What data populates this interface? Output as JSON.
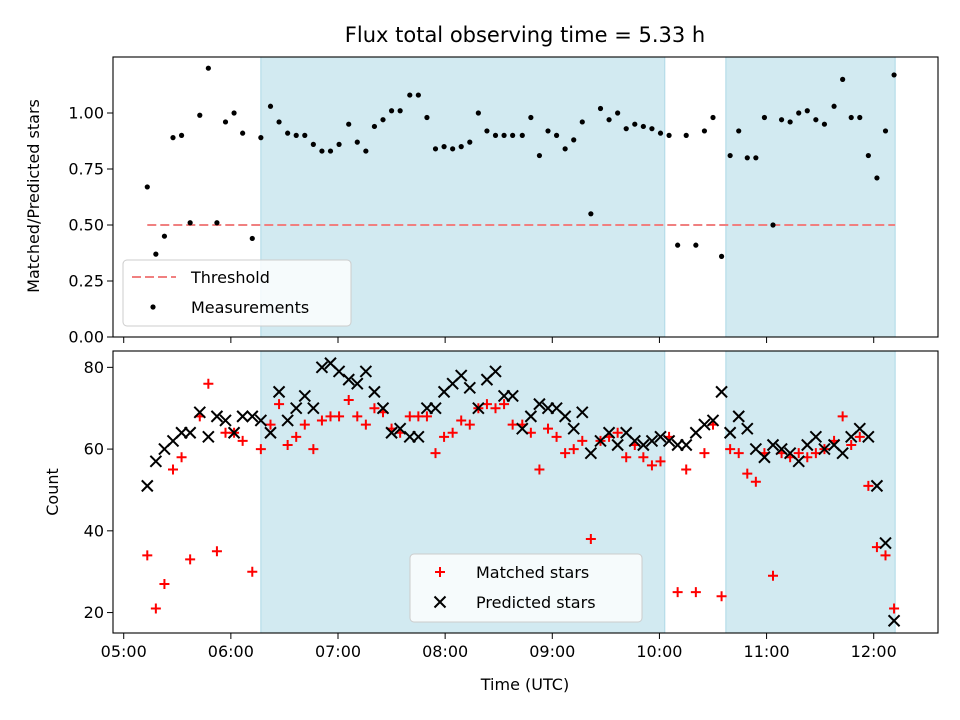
{
  "title": "Flux total observing time = 5.33 h",
  "colors": {
    "threshold": "#f08080",
    "measurement": "#000000",
    "matched": "#ff0000",
    "predicted": "#000000",
    "shade": "#add8e6"
  },
  "chart_data": [
    {
      "type": "scatter",
      "ylabel": "Matched/Predicted stars",
      "xlim": [
        4.9,
        12.6
      ],
      "ylim": [
        0,
        1.25
      ],
      "yticks": [
        0.0,
        0.25,
        0.5,
        0.75,
        1.0
      ],
      "yticklabels": [
        "0.00",
        "0.25",
        "0.50",
        "0.75",
        "1.00"
      ],
      "shaded_intervals": [
        [
          6.28,
          10.05
        ],
        [
          10.62,
          12.2
        ]
      ],
      "legend": {
        "location": "lower-left",
        "threshold_label": "Threshold",
        "measurements_label": "Measurements"
      },
      "threshold": {
        "name": "Threshold",
        "y": 0.5,
        "x": [
          5.22,
          12.2
        ]
      },
      "series": [
        {
          "name": "Measurements",
          "points": [
            [
              5.22,
              0.67
            ],
            [
              5.3,
              0.37
            ],
            [
              5.38,
              0.45
            ],
            [
              5.46,
              0.89
            ],
            [
              5.54,
              0.9
            ],
            [
              5.62,
              0.51
            ],
            [
              5.71,
              0.99
            ],
            [
              5.79,
              1.2
            ],
            [
              5.87,
              0.51
            ],
            [
              5.95,
              0.96
            ],
            [
              6.03,
              1.0
            ],
            [
              6.11,
              0.91
            ],
            [
              6.2,
              0.44
            ],
            [
              6.28,
              0.89
            ],
            [
              6.37,
              1.03
            ],
            [
              6.45,
              0.96
            ],
            [
              6.53,
              0.91
            ],
            [
              6.61,
              0.9
            ],
            [
              6.69,
              0.9
            ],
            [
              6.77,
              0.86
            ],
            [
              6.85,
              0.83
            ],
            [
              6.93,
              0.83
            ],
            [
              7.01,
              0.86
            ],
            [
              7.1,
              0.95
            ],
            [
              7.18,
              0.87
            ],
            [
              7.26,
              0.83
            ],
            [
              7.34,
              0.94
            ],
            [
              7.42,
              0.97
            ],
            [
              7.5,
              1.01
            ],
            [
              7.58,
              1.01
            ],
            [
              7.67,
              1.08
            ],
            [
              7.75,
              1.08
            ],
            [
              7.83,
              0.98
            ],
            [
              7.91,
              0.84
            ],
            [
              7.99,
              0.85
            ],
            [
              8.07,
              0.84
            ],
            [
              8.15,
              0.85
            ],
            [
              8.23,
              0.87
            ],
            [
              8.31,
              1.0
            ],
            [
              8.39,
              0.92
            ],
            [
              8.47,
              0.9
            ],
            [
              8.55,
              0.9
            ],
            [
              8.63,
              0.9
            ],
            [
              8.72,
              0.9
            ],
            [
              8.8,
              0.98
            ],
            [
              8.88,
              0.81
            ],
            [
              8.96,
              0.92
            ],
            [
              9.04,
              0.9
            ],
            [
              9.12,
              0.84
            ],
            [
              9.2,
              0.88
            ],
            [
              9.28,
              0.96
            ],
            [
              9.36,
              0.55
            ],
            [
              9.45,
              1.02
            ],
            [
              9.53,
              0.97
            ],
            [
              9.61,
              1.0
            ],
            [
              9.69,
              0.93
            ],
            [
              9.77,
              0.95
            ],
            [
              9.85,
              0.94
            ],
            [
              9.93,
              0.93
            ],
            [
              10.01,
              0.91
            ],
            [
              10.09,
              0.9
            ],
            [
              10.17,
              0.41
            ],
            [
              10.25,
              0.9
            ],
            [
              10.34,
              0.41
            ],
            [
              10.42,
              0.92
            ],
            [
              10.5,
              0.98
            ],
            [
              10.58,
              0.36
            ],
            [
              10.66,
              0.81
            ],
            [
              10.74,
              0.92
            ],
            [
              10.82,
              0.8
            ],
            [
              10.9,
              0.8
            ],
            [
              10.98,
              0.98
            ],
            [
              11.06,
              0.5
            ],
            [
              11.14,
              0.97
            ],
            [
              11.22,
              0.96
            ],
            [
              11.3,
              1.0
            ],
            [
              11.38,
              1.01
            ],
            [
              11.46,
              0.97
            ],
            [
              11.54,
              0.95
            ],
            [
              11.63,
              1.03
            ],
            [
              11.71,
              1.15
            ],
            [
              11.79,
              0.98
            ],
            [
              11.87,
              0.98
            ],
            [
              11.95,
              0.81
            ],
            [
              12.03,
              0.71
            ],
            [
              12.11,
              0.92
            ],
            [
              12.19,
              1.17
            ]
          ]
        }
      ]
    },
    {
      "type": "scatter",
      "xlabel": "Time (UTC)",
      "ylabel": "Count",
      "xlim": [
        4.9,
        12.6
      ],
      "ylim": [
        15,
        84
      ],
      "xticks": [
        5,
        6,
        7,
        8,
        9,
        10,
        11,
        12
      ],
      "xticklabels": [
        "05:00",
        "06:00",
        "07:00",
        "08:00",
        "09:00",
        "10:00",
        "11:00",
        "12:00"
      ],
      "yticks": [
        20,
        40,
        60,
        80
      ],
      "yticklabels": [
        "20",
        "40",
        "60",
        "80"
      ],
      "shaded_intervals": [
        [
          6.28,
          10.05
        ],
        [
          10.62,
          12.2
        ]
      ],
      "legend": {
        "location": "lower-center",
        "matched_label": "Matched stars",
        "predicted_label": "Predicted stars"
      },
      "series": [
        {
          "name": "Matched stars",
          "points": [
            [
              5.22,
              34
            ],
            [
              5.3,
              21
            ],
            [
              5.38,
              27
            ],
            [
              5.46,
              55
            ],
            [
              5.54,
              58
            ],
            [
              5.62,
              33
            ],
            [
              5.71,
              68
            ],
            [
              5.79,
              76
            ],
            [
              5.87,
              35
            ],
            [
              5.95,
              64
            ],
            [
              6.03,
              64
            ],
            [
              6.11,
              62
            ],
            [
              6.2,
              30
            ],
            [
              6.28,
              60
            ],
            [
              6.37,
              66
            ],
            [
              6.45,
              71
            ],
            [
              6.53,
              61
            ],
            [
              6.61,
              63
            ],
            [
              6.69,
              66
            ],
            [
              6.77,
              60
            ],
            [
              6.85,
              67
            ],
            [
              6.93,
              68
            ],
            [
              7.01,
              68
            ],
            [
              7.1,
              72
            ],
            [
              7.18,
              68
            ],
            [
              7.26,
              66
            ],
            [
              7.34,
              70
            ],
            [
              7.42,
              69
            ],
            [
              7.5,
              65
            ],
            [
              7.58,
              64
            ],
            [
              7.67,
              68
            ],
            [
              7.75,
              68
            ],
            [
              7.83,
              68
            ],
            [
              7.91,
              59
            ],
            [
              7.99,
              63
            ],
            [
              8.07,
              64
            ],
            [
              8.15,
              67
            ],
            [
              8.23,
              66
            ],
            [
              8.31,
              70
            ],
            [
              8.39,
              71
            ],
            [
              8.47,
              70
            ],
            [
              8.55,
              71
            ],
            [
              8.63,
              66
            ],
            [
              8.72,
              66
            ],
            [
              8.8,
              64
            ],
            [
              8.88,
              55
            ],
            [
              8.96,
              65
            ],
            [
              9.04,
              63
            ],
            [
              9.12,
              59
            ],
            [
              9.2,
              60
            ],
            [
              9.28,
              62
            ],
            [
              9.36,
              38
            ],
            [
              9.45,
              62
            ],
            [
              9.53,
              63
            ],
            [
              9.61,
              64
            ],
            [
              9.69,
              58
            ],
            [
              9.77,
              61
            ],
            [
              9.85,
              58
            ],
            [
              9.93,
              56
            ],
            [
              10.01,
              57
            ],
            [
              10.09,
              63
            ],
            [
              10.17,
              25
            ],
            [
              10.25,
              55
            ],
            [
              10.34,
              25
            ],
            [
              10.42,
              59
            ],
            [
              10.5,
              66
            ],
            [
              10.58,
              24
            ],
            [
              10.66,
              60
            ],
            [
              10.74,
              59
            ],
            [
              10.82,
              54
            ],
            [
              10.9,
              52
            ],
            [
              10.98,
              59
            ],
            [
              11.06,
              29
            ],
            [
              11.14,
              59
            ],
            [
              11.22,
              58
            ],
            [
              11.3,
              59
            ],
            [
              11.38,
              58
            ],
            [
              11.46,
              59
            ],
            [
              11.54,
              60
            ],
            [
              11.63,
              62
            ],
            [
              11.71,
              68
            ],
            [
              11.79,
              61
            ],
            [
              11.87,
              63
            ],
            [
              11.95,
              51
            ],
            [
              12.03,
              36
            ],
            [
              12.11,
              34
            ],
            [
              12.19,
              21
            ]
          ]
        },
        {
          "name": "Predicted stars",
          "points": [
            [
              5.22,
              51
            ],
            [
              5.3,
              57
            ],
            [
              5.38,
              60
            ],
            [
              5.46,
              62
            ],
            [
              5.54,
              64
            ],
            [
              5.62,
              64
            ],
            [
              5.71,
              69
            ],
            [
              5.79,
              63
            ],
            [
              5.87,
              68
            ],
            [
              5.95,
              67
            ],
            [
              6.03,
              64
            ],
            [
              6.11,
              68
            ],
            [
              6.2,
              68
            ],
            [
              6.28,
              67
            ],
            [
              6.37,
              64
            ],
            [
              6.45,
              74
            ],
            [
              6.53,
              67
            ],
            [
              6.61,
              70
            ],
            [
              6.69,
              73
            ],
            [
              6.77,
              70
            ],
            [
              6.85,
              80
            ],
            [
              6.93,
              81
            ],
            [
              7.01,
              79
            ],
            [
              7.1,
              77
            ],
            [
              7.18,
              76
            ],
            [
              7.26,
              79
            ],
            [
              7.34,
              74
            ],
            [
              7.42,
              70
            ],
            [
              7.5,
              64
            ],
            [
              7.58,
              65
            ],
            [
              7.67,
              63
            ],
            [
              7.75,
              63
            ],
            [
              7.83,
              70
            ],
            [
              7.91,
              70
            ],
            [
              7.99,
              74
            ],
            [
              8.07,
              76
            ],
            [
              8.15,
              78
            ],
            [
              8.23,
              75
            ],
            [
              8.31,
              70
            ],
            [
              8.39,
              77
            ],
            [
              8.47,
              79
            ],
            [
              8.55,
              73
            ],
            [
              8.63,
              73
            ],
            [
              8.72,
              65
            ],
            [
              8.8,
              68
            ],
            [
              8.88,
              71
            ],
            [
              8.96,
              70
            ],
            [
              9.04,
              70
            ],
            [
              9.12,
              68
            ],
            [
              9.2,
              65
            ],
            [
              9.28,
              69
            ],
            [
              9.36,
              59
            ],
            [
              9.45,
              62
            ],
            [
              9.53,
              64
            ],
            [
              9.61,
              61
            ],
            [
              9.69,
              64
            ],
            [
              9.77,
              62
            ],
            [
              9.85,
              61
            ],
            [
              9.93,
              62
            ],
            [
              10.01,
              63
            ],
            [
              10.09,
              62
            ],
            [
              10.17,
              61
            ],
            [
              10.25,
              61
            ],
            [
              10.34,
              64
            ],
            [
              10.42,
              66
            ],
            [
              10.5,
              67
            ],
            [
              10.58,
              74
            ],
            [
              10.66,
              64
            ],
            [
              10.74,
              68
            ],
            [
              10.82,
              65
            ],
            [
              10.9,
              60
            ],
            [
              10.98,
              58
            ],
            [
              11.06,
              61
            ],
            [
              11.14,
              60
            ],
            [
              11.22,
              59
            ],
            [
              11.3,
              57
            ],
            [
              11.38,
              61
            ],
            [
              11.46,
              63
            ],
            [
              11.54,
              60
            ],
            [
              11.63,
              61
            ],
            [
              11.71,
              59
            ],
            [
              11.79,
              63
            ],
            [
              11.87,
              65
            ],
            [
              11.95,
              63
            ],
            [
              12.03,
              51
            ],
            [
              12.11,
              37
            ],
            [
              12.19,
              18
            ]
          ]
        }
      ]
    }
  ]
}
